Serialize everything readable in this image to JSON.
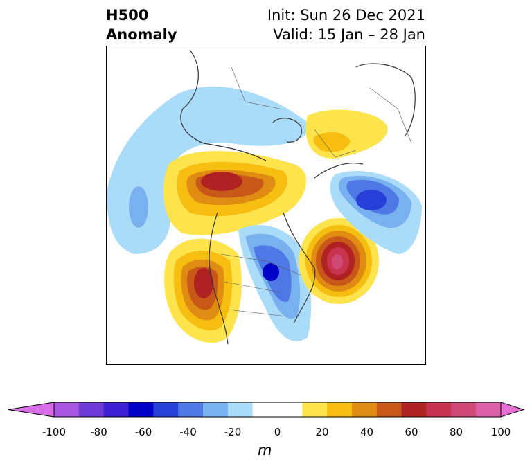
{
  "header": {
    "title_line1": "H500",
    "title_line2": "Anomaly",
    "init": "Init: Sun 26 Dec 2021",
    "valid": "Valid: 15 Jan – 28 Jan"
  },
  "colorbar": {
    "ticks": [
      "-100",
      "-80",
      "-60",
      "-40",
      "-20",
      "0",
      "20",
      "40",
      "60",
      "80",
      "100"
    ],
    "unit": "m",
    "colors": [
      "#d86ee8",
      "#a856e0",
      "#6e3ad8",
      "#3a20d0",
      "#0000c8",
      "#2640d8",
      "#4e78e6",
      "#78b0f0",
      "#aadcfa",
      "#ffffff",
      "#ffffff",
      "#fde44c",
      "#f5be10",
      "#e08c12",
      "#c85818",
      "#b02222",
      "#c83450",
      "#d04a78",
      "#dc62a8",
      "#e670d4"
    ]
  },
  "map": {
    "anomalies": [
      {
        "name": "greenland-pacific-trough",
        "sign": "negative",
        "level": "-20"
      },
      {
        "name": "central-canada-ridge",
        "sign": "positive",
        "level": "60"
      },
      {
        "name": "western-us-ridge",
        "sign": "positive",
        "level": "60"
      },
      {
        "name": "great-lakes-trough",
        "sign": "negative",
        "level": "-60"
      },
      {
        "name": "north-atlantic-ridge",
        "sign": "positive",
        "level": "80"
      },
      {
        "name": "siberia-trough",
        "sign": "negative",
        "level": "-60"
      },
      {
        "name": "arctic-ridge",
        "sign": "positive",
        "level": "20"
      }
    ]
  }
}
